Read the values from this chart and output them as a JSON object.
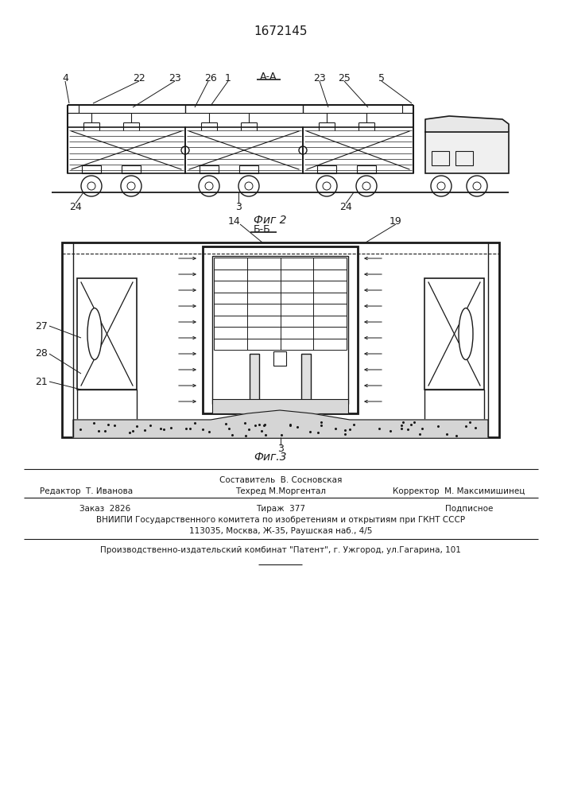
{
  "title": "1672145",
  "fig2_label": "Фиг 2",
  "fig3_label": "Фиг.3",
  "footer_line1": "Составитель  В. Сосновская",
  "footer_line2_left": "Редактор  Т. Иванова",
  "footer_line2_center": "Техред М.Моргентал",
  "footer_line2_right": "Корректор  М. Максимишинец",
  "footer_line3a": "Заказ  2826",
  "footer_line3b": "Тираж  377",
  "footer_line3c": "Подписное",
  "footer_line4": "ВНИИПИ Государственного комитета по изобретениям и открытиям при ГКНТ СССР",
  "footer_line5": "113035, Москва, Ж-35, Раушская наб., 4/5",
  "footer_line6": "Производственно-издательский комбинат \"Патент\", г. Ужгород, ул.Гагарина, 101",
  "bg_color": "#ffffff",
  "line_color": "#1a1a1a"
}
